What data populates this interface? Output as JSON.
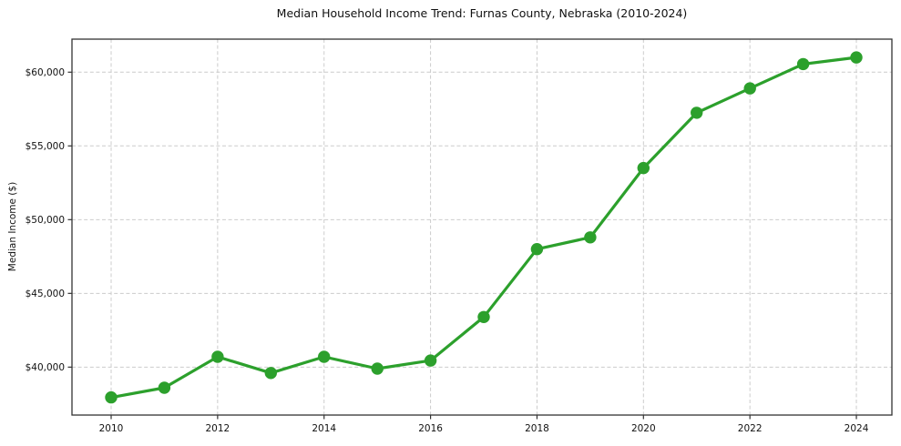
{
  "chart_data": {
    "type": "line",
    "title": "Median Household Income Trend: Furnas County, Nebraska (2010-2024)",
    "xlabel": "",
    "ylabel": "Median Income ($)",
    "x": [
      2010,
      2011,
      2012,
      2013,
      2014,
      2015,
      2016,
      2017,
      2018,
      2019,
      2020,
      2021,
      2022,
      2023,
      2024
    ],
    "series": [
      {
        "name": "Median Household Income",
        "color": "#2ca02c",
        "marker": "circle",
        "values": [
          37950,
          38600,
          40700,
          39600,
          40700,
          39900,
          40450,
          43400,
          48000,
          48800,
          53500,
          57250,
          58900,
          60550,
          61000
        ]
      }
    ],
    "xticks": [
      2010,
      2012,
      2014,
      2016,
      2018,
      2020,
      2022,
      2024
    ],
    "xtick_labels": [
      "2010",
      "2012",
      "2014",
      "2016",
      "2018",
      "2020",
      "2022",
      "2024"
    ],
    "yticks": [
      40000,
      45000,
      50000,
      55000,
      60000
    ],
    "ytick_labels": [
      "$40,000",
      "$45,000",
      "$50,000",
      "$55,000",
      "$60,000"
    ],
    "xlim": [
      2009.264,
      2024.667
    ],
    "ylim": [
      36750,
      62240
    ],
    "grid": true,
    "grid_style": "dashed",
    "legend_position": "none"
  },
  "style": {
    "line_color": "#2ca02c",
    "grid_color": "#cccccc",
    "spine_color": "#333333",
    "text_color": "#111111",
    "background": "#ffffff"
  }
}
